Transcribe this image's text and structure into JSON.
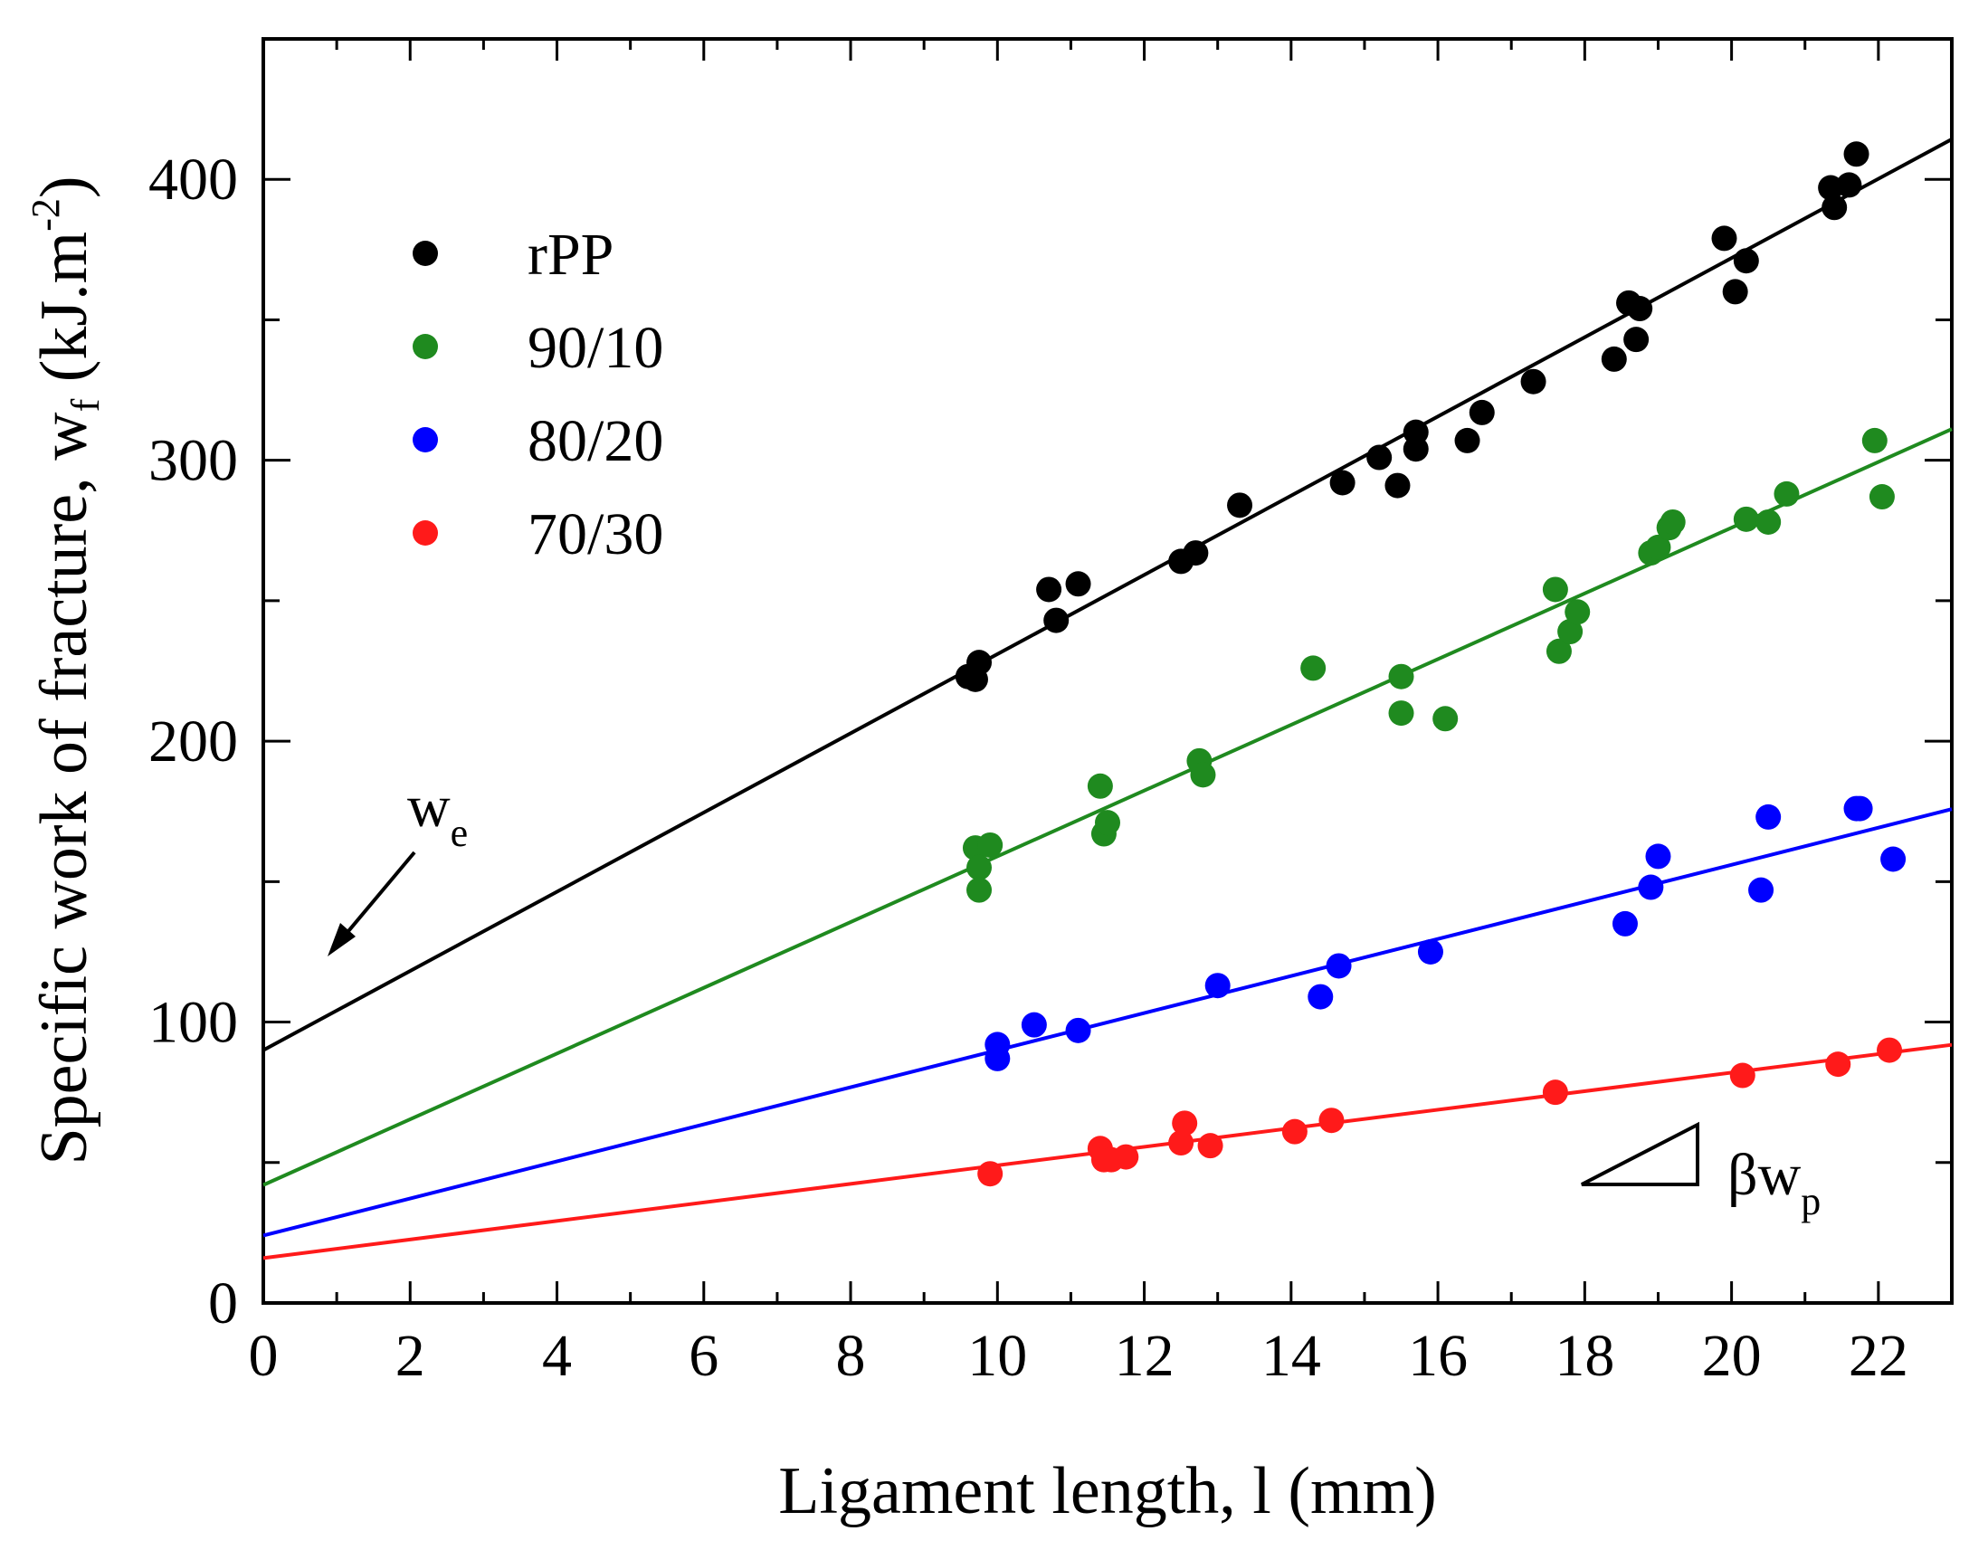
{
  "chart_data": {
    "type": "scatter",
    "title": "",
    "xlabel": "Ligament length, l (mm)",
    "ylabel": {
      "main": "Specific work of fracture, w",
      "sub": "f",
      "units_open": " (kJ.m",
      "units_sup": "-2",
      "units_close": ")"
    },
    "xlim": [
      0,
      23
    ],
    "ylim": [
      0,
      450
    ],
    "x_ticks": [
      0,
      2,
      4,
      6,
      8,
      10,
      12,
      14,
      16,
      18,
      20,
      22
    ],
    "y_ticks": [
      0,
      100,
      200,
      300,
      400
    ],
    "grid": false,
    "legend_position": "top-left",
    "series": [
      {
        "name": "rPP",
        "color": "#000000",
        "fit": {
          "intercept": 90,
          "slope": 14.1
        },
        "points": [
          [
            9.6,
            223
          ],
          [
            9.75,
            228
          ],
          [
            9.7,
            222
          ],
          [
            10.7,
            254
          ],
          [
            10.8,
            243
          ],
          [
            11.1,
            256
          ],
          [
            12.5,
            264
          ],
          [
            12.7,
            267
          ],
          [
            13.3,
            284
          ],
          [
            14.7,
            292
          ],
          [
            15.2,
            301
          ],
          [
            15.45,
            291
          ],
          [
            15.7,
            304
          ],
          [
            15.7,
            310
          ],
          [
            16.4,
            307
          ],
          [
            16.6,
            317
          ],
          [
            17.3,
            328
          ],
          [
            18.4,
            336
          ],
          [
            18.6,
            356
          ],
          [
            18.7,
            343
          ],
          [
            18.75,
            354
          ],
          [
            19.9,
            379
          ],
          [
            20.05,
            360
          ],
          [
            20.2,
            371
          ],
          [
            21.35,
            397
          ],
          [
            21.4,
            390
          ],
          [
            21.6,
            398
          ],
          [
            21.7,
            409
          ]
        ]
      },
      {
        "name": "90/10",
        "color": "#1f8a1f",
        "fit": {
          "intercept": 42,
          "slope": 11.7
        },
        "points": [
          [
            9.7,
            162
          ],
          [
            9.75,
            155
          ],
          [
            9.75,
            147
          ],
          [
            9.9,
            163
          ],
          [
            11.4,
            184
          ],
          [
            11.45,
            167
          ],
          [
            11.5,
            171
          ],
          [
            12.75,
            193
          ],
          [
            12.8,
            188
          ],
          [
            14.3,
            226
          ],
          [
            15.5,
            223
          ],
          [
            15.5,
            210
          ],
          [
            16.1,
            208
          ],
          [
            17.6,
            254
          ],
          [
            17.65,
            232
          ],
          [
            17.8,
            239
          ],
          [
            17.9,
            246
          ],
          [
            18.9,
            267
          ],
          [
            19.0,
            269
          ],
          [
            19.15,
            276
          ],
          [
            19.2,
            278
          ],
          [
            20.2,
            279
          ],
          [
            20.5,
            278
          ],
          [
            20.75,
            288
          ],
          [
            21.95,
            307
          ],
          [
            22.05,
            287
          ]
        ]
      },
      {
        "name": "80/20",
        "color": "#0000ff",
        "fit": {
          "intercept": 24,
          "slope": 6.6
        },
        "points": [
          [
            10.0,
            92
          ],
          [
            10.0,
            87
          ],
          [
            10.5,
            99
          ],
          [
            11.1,
            97
          ],
          [
            13.0,
            113
          ],
          [
            14.4,
            109
          ],
          [
            14.65,
            120
          ],
          [
            15.9,
            125
          ],
          [
            18.55,
            135
          ],
          [
            18.9,
            148
          ],
          [
            19.0,
            159
          ],
          [
            20.4,
            147
          ],
          [
            20.5,
            173
          ],
          [
            21.7,
            176
          ],
          [
            21.75,
            176
          ],
          [
            22.2,
            158
          ]
        ]
      },
      {
        "name": "70/30",
        "color": "#ff1a1a",
        "fit": {
          "intercept": 16,
          "slope": 3.3
        },
        "points": [
          [
            9.9,
            46
          ],
          [
            11.4,
            55
          ],
          [
            11.45,
            51
          ],
          [
            11.55,
            51
          ],
          [
            11.75,
            52
          ],
          [
            12.5,
            57
          ],
          [
            12.55,
            64
          ],
          [
            12.9,
            56
          ],
          [
            14.05,
            61
          ],
          [
            14.55,
            65
          ],
          [
            17.6,
            75
          ],
          [
            20.15,
            81
          ],
          [
            21.45,
            85
          ],
          [
            22.15,
            90
          ]
        ]
      }
    ],
    "annotations": {
      "we": {
        "main": "w",
        "sub": "e"
      },
      "slope": {
        "prefix": "β",
        "main": "w",
        "sub": "p"
      }
    }
  }
}
